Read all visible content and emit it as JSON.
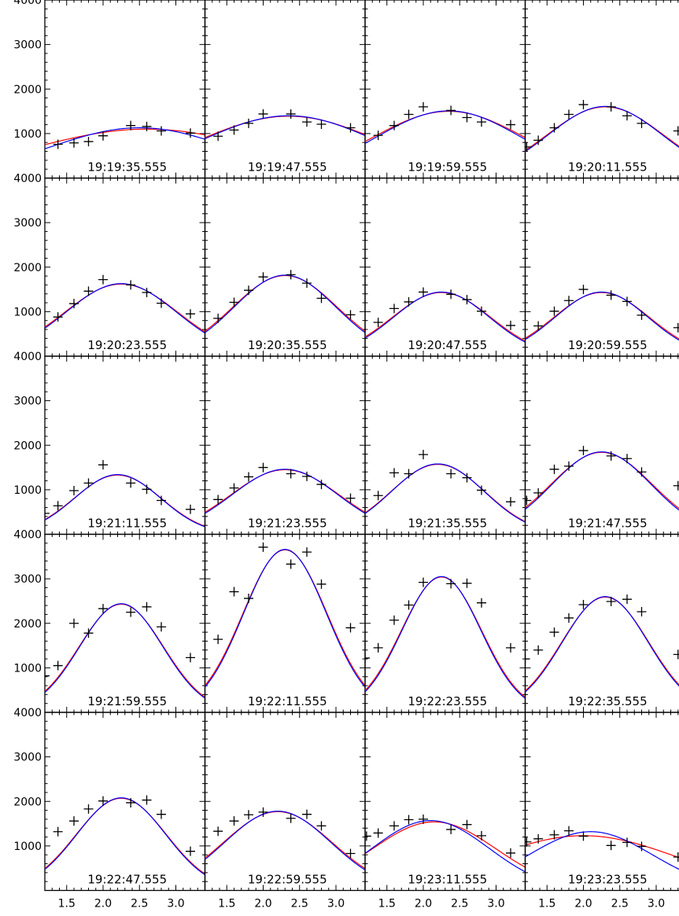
{
  "chart_data": {
    "type": "scatter",
    "layout": "5x4 grid of panels sharing axes",
    "xlim": [
      1.2,
      3.4
    ],
    "ylim": [
      0,
      4000
    ],
    "xticks": [
      1.5,
      2.0,
      2.5,
      3.0
    ],
    "xtick_labels": [
      "1.5",
      "2.0",
      "2.5",
      "3.0"
    ],
    "yticks": [
      1000,
      2000,
      3000,
      4000
    ],
    "ytick_labels": [
      "1000",
      "2000",
      "3000",
      "4000"
    ],
    "grid": false,
    "legend": "none",
    "colors": {
      "points": "#000000",
      "fit_red": "#ff0000",
      "fit_blue": "#0000ff"
    },
    "panels": [
      {
        "label": "19:19:35.555",
        "points": [
          [
            1.38,
            760
          ],
          [
            1.6,
            790
          ],
          [
            1.8,
            820
          ],
          [
            2.0,
            950
          ],
          [
            2.38,
            1180
          ],
          [
            2.6,
            1160
          ],
          [
            2.8,
            1060
          ],
          [
            3.2,
            1010
          ]
        ],
        "red": {
          "a": 1100,
          "mu": 2.6,
          "sigma": 1.6,
          "b": 0
        },
        "blue": {
          "a": 1130,
          "mu": 2.5,
          "sigma": 1.25,
          "b": 0
        }
      },
      {
        "label": "19:19:47.555",
        "points": [
          [
            1.38,
            940
          ],
          [
            1.6,
            1080
          ],
          [
            1.8,
            1230
          ],
          [
            2.0,
            1440
          ],
          [
            2.38,
            1440
          ],
          [
            2.6,
            1260
          ],
          [
            2.8,
            1210
          ],
          [
            3.2,
            1130
          ]
        ],
        "red": {
          "a": 1390,
          "mu": 2.35,
          "sigma": 1.25,
          "b": 0
        },
        "blue": {
          "a": 1400,
          "mu": 2.35,
          "sigma": 1.2,
          "b": 0
        }
      },
      {
        "label": "19:19:59.555",
        "points": [
          [
            1.38,
            960
          ],
          [
            1.6,
            1180
          ],
          [
            1.8,
            1430
          ],
          [
            2.0,
            1600
          ],
          [
            2.38,
            1520
          ],
          [
            2.6,
            1360
          ],
          [
            2.8,
            1260
          ],
          [
            3.2,
            1200
          ]
        ],
        "red": {
          "a": 1500,
          "mu": 2.35,
          "sigma": 1.05,
          "b": 0
        },
        "blue": {
          "a": 1510,
          "mu": 2.35,
          "sigma": 1.0,
          "b": 0
        }
      },
      {
        "label": "19:20:11.555",
        "points": [
          [
            1.22,
            700
          ],
          [
            1.38,
            850
          ],
          [
            1.6,
            1130
          ],
          [
            1.8,
            1430
          ],
          [
            2.0,
            1650
          ],
          [
            2.38,
            1600
          ],
          [
            2.6,
            1400
          ],
          [
            2.8,
            1230
          ],
          [
            3.3,
            1060
          ]
        ],
        "red": {
          "a": 1600,
          "mu": 2.3,
          "sigma": 0.8,
          "b": 0
        },
        "blue": {
          "a": 1610,
          "mu": 2.3,
          "sigma": 0.78,
          "b": 0
        }
      },
      {
        "label": "19:20:23.555",
        "points": [
          [
            1.38,
            880
          ],
          [
            1.6,
            1180
          ],
          [
            1.8,
            1460
          ],
          [
            2.0,
            1720
          ],
          [
            2.38,
            1600
          ],
          [
            2.6,
            1430
          ],
          [
            2.8,
            1190
          ],
          [
            3.2,
            950
          ]
        ],
        "red": {
          "a": 1620,
          "mu": 2.25,
          "sigma": 0.78,
          "b": 0
        },
        "blue": {
          "a": 1630,
          "mu": 2.25,
          "sigma": 0.76,
          "b": 0
        }
      },
      {
        "label": "19:20:35.555",
        "points": [
          [
            1.38,
            850
          ],
          [
            1.6,
            1210
          ],
          [
            1.8,
            1480
          ],
          [
            2.0,
            1780
          ],
          [
            2.38,
            1830
          ],
          [
            2.6,
            1640
          ],
          [
            2.8,
            1300
          ],
          [
            3.2,
            930
          ]
        ],
        "red": {
          "a": 1810,
          "mu": 2.3,
          "sigma": 0.72,
          "b": 0
        },
        "blue": {
          "a": 1820,
          "mu": 2.3,
          "sigma": 0.7,
          "b": 0
        }
      },
      {
        "label": "19:20:47.555",
        "points": [
          [
            1.38,
            760
          ],
          [
            1.6,
            1070
          ],
          [
            1.8,
            1220
          ],
          [
            2.0,
            1440
          ],
          [
            2.38,
            1390
          ],
          [
            2.6,
            1270
          ],
          [
            2.8,
            1010
          ],
          [
            3.2,
            690
          ]
        ],
        "red": {
          "a": 1430,
          "mu": 2.25,
          "sigma": 0.68,
          "b": 0
        },
        "blue": {
          "a": 1440,
          "mu": 2.25,
          "sigma": 0.66,
          "b": 0
        }
      },
      {
        "label": "19:20:59.555",
        "points": [
          [
            1.38,
            680
          ],
          [
            1.6,
            1010
          ],
          [
            1.8,
            1250
          ],
          [
            2.0,
            1500
          ],
          [
            2.38,
            1370
          ],
          [
            2.6,
            1230
          ],
          [
            2.8,
            920
          ],
          [
            3.3,
            640
          ]
        ],
        "red": {
          "a": 1430,
          "mu": 2.25,
          "sigma": 0.66,
          "b": 0
        },
        "blue": {
          "a": 1440,
          "mu": 2.25,
          "sigma": 0.64,
          "b": 0
        }
      },
      {
        "label": "19:21:11.555",
        "points": [
          [
            1.2,
            470
          ],
          [
            1.38,
            640
          ],
          [
            1.6,
            980
          ],
          [
            1.8,
            1150
          ],
          [
            2.0,
            1560
          ],
          [
            2.38,
            1150
          ],
          [
            2.6,
            1010
          ],
          [
            2.8,
            760
          ],
          [
            3.2,
            560
          ]
        ],
        "red": {
          "a": 1330,
          "mu": 2.2,
          "sigma": 0.6,
          "b": 0
        },
        "blue": {
          "a": 1340,
          "mu": 2.2,
          "sigma": 0.59,
          "b": 0
        }
      },
      {
        "label": "19:21:23.555",
        "points": [
          [
            1.38,
            780
          ],
          [
            1.6,
            1040
          ],
          [
            1.8,
            1290
          ],
          [
            2.0,
            1500
          ],
          [
            2.38,
            1360
          ],
          [
            2.6,
            1300
          ],
          [
            2.8,
            1120
          ],
          [
            3.2,
            810
          ]
        ],
        "red": {
          "a": 1450,
          "mu": 2.3,
          "sigma": 0.75,
          "b": 0
        },
        "blue": {
          "a": 1460,
          "mu": 2.3,
          "sigma": 0.73,
          "b": 0
        }
      },
      {
        "label": "19:21:35.555",
        "points": [
          [
            1.38,
            870
          ],
          [
            1.6,
            1380
          ],
          [
            1.8,
            1360
          ],
          [
            2.0,
            1790
          ],
          [
            2.38,
            1360
          ],
          [
            2.6,
            1270
          ],
          [
            2.8,
            990
          ],
          [
            3.2,
            730
          ]
        ],
        "red": {
          "a": 1570,
          "mu": 2.2,
          "sigma": 0.65,
          "b": 0
        },
        "blue": {
          "a": 1580,
          "mu": 2.2,
          "sigma": 0.64,
          "b": 0
        }
      },
      {
        "label": "19:21:47.555",
        "points": [
          [
            1.22,
            760
          ],
          [
            1.38,
            930
          ],
          [
            1.6,
            1460
          ],
          [
            1.8,
            1530
          ],
          [
            2.0,
            1880
          ],
          [
            2.38,
            1760
          ],
          [
            2.6,
            1700
          ],
          [
            2.8,
            1400
          ],
          [
            3.3,
            1090
          ]
        ],
        "red": {
          "a": 1840,
          "mu": 2.25,
          "sigma": 0.7,
          "b": 0
        },
        "blue": {
          "a": 1850,
          "mu": 2.25,
          "sigma": 0.68,
          "b": 0
        }
      },
      {
        "label": "19:21:59.555",
        "points": [
          [
            1.2,
            820
          ],
          [
            1.38,
            1050
          ],
          [
            1.6,
            2000
          ],
          [
            1.8,
            1780
          ],
          [
            2.0,
            2330
          ],
          [
            2.38,
            2250
          ],
          [
            2.6,
            2370
          ],
          [
            2.8,
            1920
          ],
          [
            3.2,
            1230
          ]
        ],
        "red": {
          "a": 2430,
          "mu": 2.25,
          "sigma": 0.58,
          "b": 0
        },
        "blue": {
          "a": 2440,
          "mu": 2.25,
          "sigma": 0.57,
          "b": 0
        }
      },
      {
        "label": "19:22:11.555",
        "points": [
          [
            1.38,
            1640
          ],
          [
            1.6,
            2710
          ],
          [
            1.8,
            2560
          ],
          [
            2.0,
            3710
          ],
          [
            2.38,
            3330
          ],
          [
            2.6,
            3600
          ],
          [
            2.8,
            2880
          ],
          [
            3.2,
            1900
          ]
        ],
        "red": {
          "a": 3650,
          "mu": 2.3,
          "sigma": 0.58,
          "b": 0
        },
        "blue": {
          "a": 3660,
          "mu": 2.3,
          "sigma": 0.57,
          "b": 0
        }
      },
      {
        "label": "19:22:23.555",
        "points": [
          [
            1.2,
            1220
          ],
          [
            1.38,
            1450
          ],
          [
            1.6,
            2070
          ],
          [
            1.8,
            2410
          ],
          [
            2.0,
            2920
          ],
          [
            2.38,
            2890
          ],
          [
            2.6,
            2900
          ],
          [
            2.8,
            2460
          ],
          [
            3.2,
            1450
          ]
        ],
        "red": {
          "a": 3040,
          "mu": 2.25,
          "sigma": 0.55,
          "b": 0
        },
        "blue": {
          "a": 3050,
          "mu": 2.25,
          "sigma": 0.54,
          "b": 0
        }
      },
      {
        "label": "19:22:35.555",
        "points": [
          [
            1.2,
            1200
          ],
          [
            1.38,
            1400
          ],
          [
            1.6,
            1800
          ],
          [
            1.8,
            2120
          ],
          [
            2.0,
            2420
          ],
          [
            2.38,
            2490
          ],
          [
            2.6,
            2540
          ],
          [
            2.8,
            2260
          ],
          [
            3.3,
            1300
          ]
        ],
        "red": {
          "a": 2590,
          "mu": 2.3,
          "sigma": 0.6,
          "b": 0
        },
        "blue": {
          "a": 2600,
          "mu": 2.3,
          "sigma": 0.59,
          "b": 0
        }
      },
      {
        "label": "19:22:47.555",
        "points": [
          [
            1.38,
            1320
          ],
          [
            1.6,
            1560
          ],
          [
            1.8,
            1830
          ],
          [
            2.0,
            2010
          ],
          [
            2.38,
            1970
          ],
          [
            2.6,
            2030
          ],
          [
            2.8,
            1710
          ],
          [
            3.2,
            880
          ]
        ],
        "red": {
          "a": 2070,
          "mu": 2.25,
          "sigma": 0.62,
          "b": 0
        },
        "blue": {
          "a": 2080,
          "mu": 2.25,
          "sigma": 0.61,
          "b": 0
        }
      },
      {
        "label": "19:22:59.555",
        "points": [
          [
            1.38,
            1330
          ],
          [
            1.6,
            1560
          ],
          [
            1.8,
            1700
          ],
          [
            2.0,
            1760
          ],
          [
            2.38,
            1620
          ],
          [
            2.6,
            1710
          ],
          [
            2.8,
            1450
          ],
          [
            3.2,
            830
          ]
        ],
        "red": {
          "a": 1770,
          "mu": 2.2,
          "sigma": 0.75,
          "b": 0
        },
        "blue": {
          "a": 1780,
          "mu": 2.2,
          "sigma": 0.73,
          "b": 0
        }
      },
      {
        "label": "19:23:11.555",
        "points": [
          [
            1.22,
            1220
          ],
          [
            1.38,
            1290
          ],
          [
            1.6,
            1450
          ],
          [
            1.8,
            1590
          ],
          [
            2.0,
            1600
          ],
          [
            2.38,
            1370
          ],
          [
            2.6,
            1480
          ],
          [
            2.8,
            1230
          ],
          [
            3.2,
            840
          ]
        ],
        "red": {
          "a": 1540,
          "mu": 2.15,
          "sigma": 0.85,
          "b": 0
        },
        "blue": {
          "a": 1570,
          "mu": 2.1,
          "sigma": 0.8,
          "b": 0
        }
      },
      {
        "label": "19:23:23.555",
        "points": [
          [
            1.22,
            1090
          ],
          [
            1.38,
            1160
          ],
          [
            1.6,
            1250
          ],
          [
            1.8,
            1340
          ],
          [
            2.0,
            1220
          ],
          [
            2.38,
            1010
          ],
          [
            2.6,
            1080
          ],
          [
            2.8,
            990
          ],
          [
            3.3,
            750
          ]
        ],
        "red": {
          "a": 1230,
          "mu": 2.0,
          "sigma": 1.3,
          "b": 0
        },
        "blue": {
          "a": 1320,
          "mu": 2.1,
          "sigma": 0.85,
          "b": 0
        }
      }
    ]
  }
}
